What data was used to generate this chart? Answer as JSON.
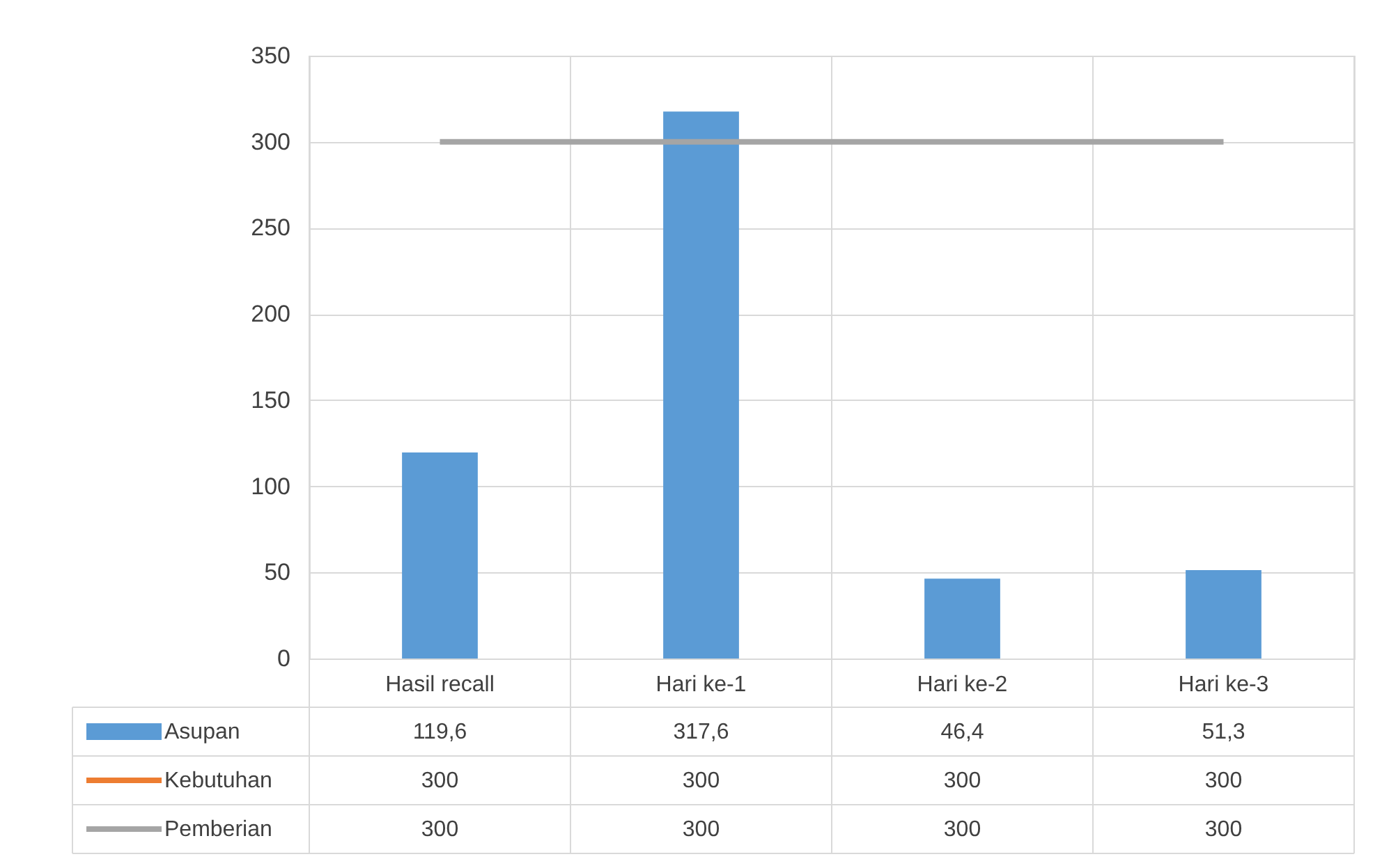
{
  "chart_data": {
    "type": "bar",
    "categories": [
      "Hasil recall",
      "Hari ke-1",
      "Hari ke-2",
      "Hari ke-3"
    ],
    "series": [
      {
        "name": "Asupan",
        "color": "#5b9bd5",
        "values": [
          119.6,
          317.6,
          46.4,
          51.3
        ],
        "value_labels": [
          "119,6",
          "317,6",
          "46,4",
          "51,3"
        ]
      },
      {
        "name": "Kebutuhan",
        "type": "line",
        "color": "#ed7d31",
        "values": [
          null,
          null,
          null,
          null
        ],
        "value_labels": [
          "300",
          "300",
          "300",
          "300"
        ]
      },
      {
        "name": "Pemberian",
        "type": "line",
        "color": "#a5a5a5",
        "values": [
          300,
          300,
          300,
          300
        ],
        "value_labels": [
          "300",
          "300",
          "300",
          "300"
        ]
      }
    ],
    "ylim": [
      0,
      350
    ],
    "yticks": [
      0,
      50,
      100,
      150,
      200,
      250,
      300,
      350
    ],
    "grid": "y",
    "legend": "bottom"
  }
}
